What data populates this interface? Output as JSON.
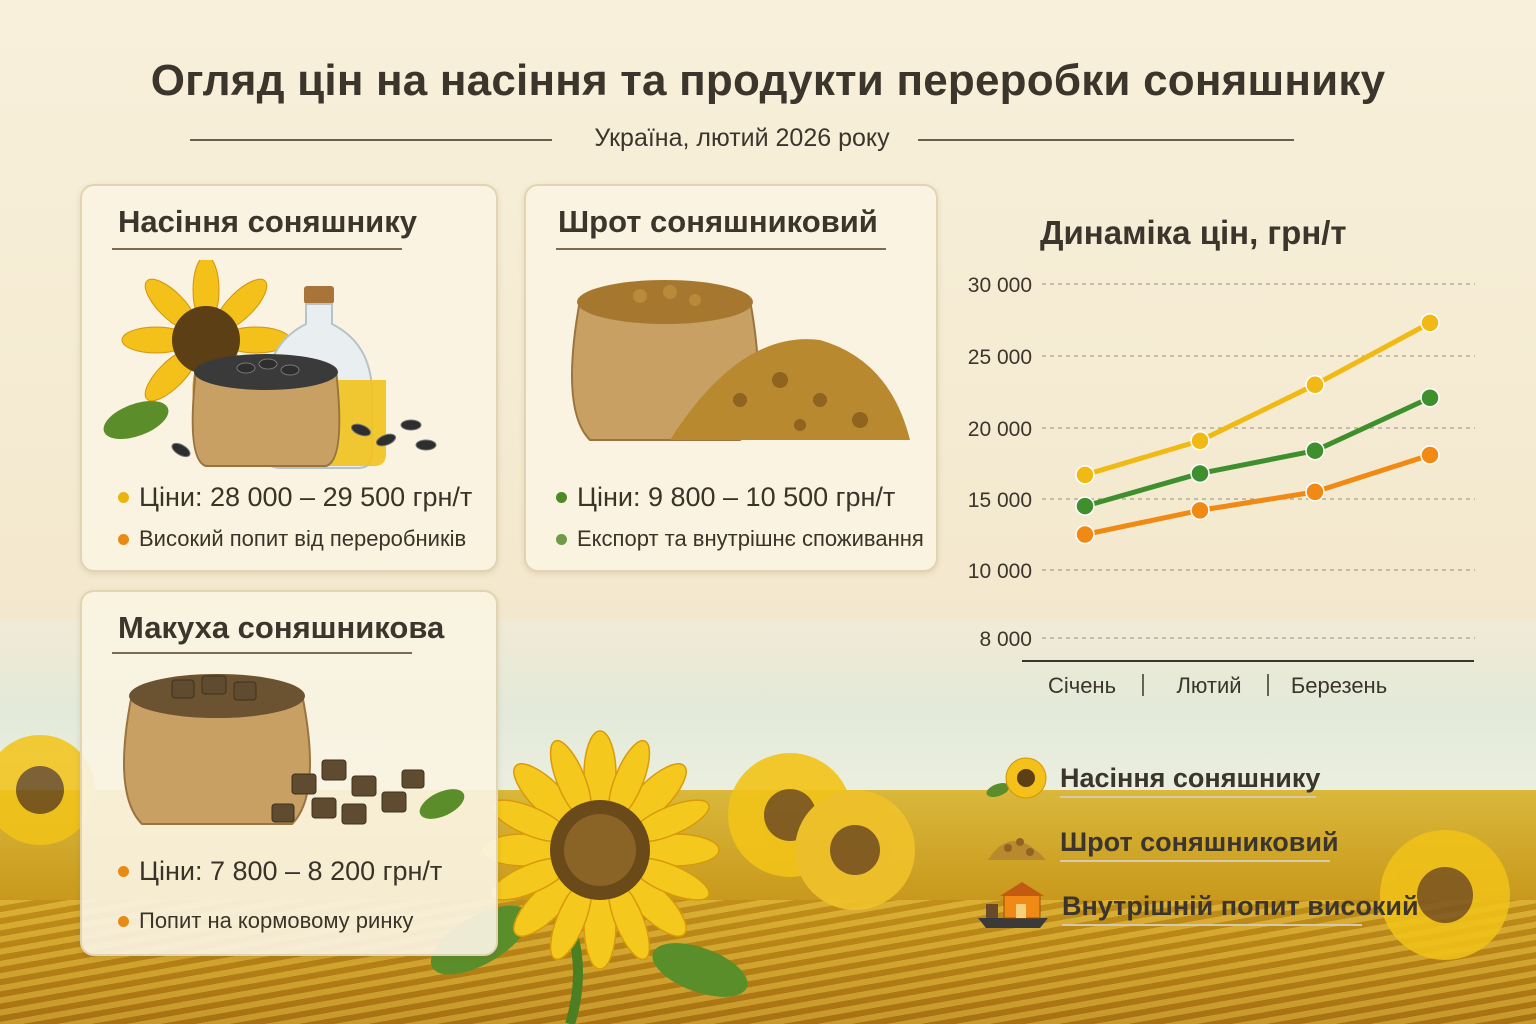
{
  "header": {
    "title": "Огляд цін на насіння та продукти переробки соняшнику",
    "subtitle": "Україна, лютий 2026 року"
  },
  "cards": [
    {
      "title": "Насіння соняшнику",
      "price": "Ціни: 28 000 – 29 500 грн/т",
      "note": "Високий попит від переробників",
      "price_dot": "#e9b50c",
      "note_dot": "#e88a16",
      "image": "sunflower-seeds-oil-icon"
    },
    {
      "title": "Шрот соняшниковий",
      "price": "Ціни: 9 800 – 10 500 грн/т",
      "note": "Експорт та внутрішнє споживання",
      "price_dot": "#4e8a2a",
      "note_dot": "#6f9a4a",
      "image": "sunflower-meal-sack-icon"
    },
    {
      "title": "Макуха соняшникова",
      "price": "Ціни: 7 800 – 8 200 грн/т",
      "note": "Попит на кормовому ринку",
      "price_dot": "#e88a16",
      "note_dot": "#e88a16",
      "image": "sunflower-cake-sack-icon"
    }
  ],
  "chart_data": {
    "type": "line",
    "title": "Динаміка цін, грн/т",
    "y_ticks": [
      8000,
      10000,
      15000,
      20000,
      25000,
      30000
    ],
    "y_tick_labels": [
      "8 000",
      "10 000",
      "15 000",
      "20 000",
      "25 000",
      "30 000"
    ],
    "ylim": [
      8000,
      30000
    ],
    "x_tick_labels": [
      "Січень",
      "Лютий",
      "Березень"
    ],
    "grid": "dashed-horizontal",
    "x": [
      1,
      2,
      3,
      4
    ],
    "series": [
      {
        "name": "Насіння соняшнику",
        "color": "#f0b914",
        "values": [
          16700,
          19100,
          23000,
          27300
        ]
      },
      {
        "name": "Шрот соняшниковий",
        "color": "#3f8f2e",
        "values": [
          14500,
          16800,
          18400,
          22100
        ]
      },
      {
        "name": "",
        "color": "#f08a14",
        "values": [
          12500,
          14200,
          15500,
          18100
        ]
      }
    ]
  },
  "legend": [
    {
      "label": "Насіння соняшнику",
      "icon": "sunflower-icon"
    },
    {
      "label": "Шрот соняшниковий",
      "icon": "meal-pile-icon"
    },
    {
      "label": "Внутрішній попит високий",
      "icon": "ship-house-icon"
    }
  ]
}
